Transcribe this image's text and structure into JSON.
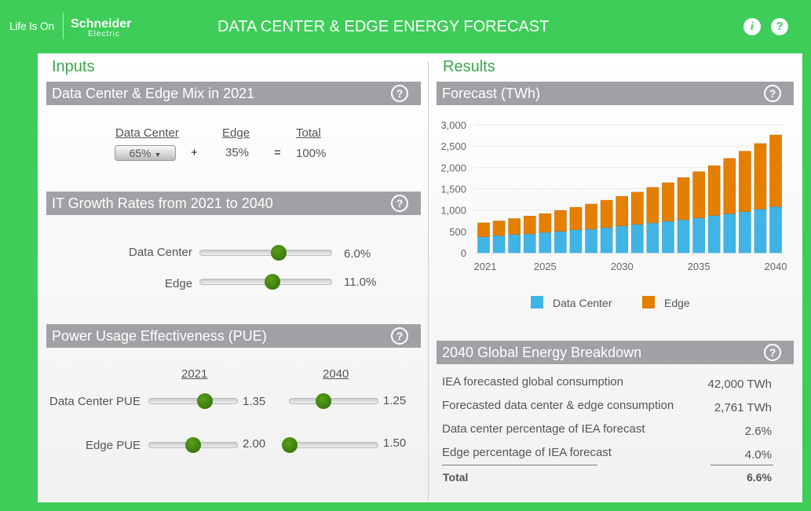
{
  "header": {
    "tagline": "Life Is On",
    "brand": "Schneider",
    "brand_sub": "Electric",
    "title": "DATA CENTER & EDGE ENERGY FORECAST",
    "info_icon": "info-icon",
    "help_icon": "help-icon"
  },
  "inputs": {
    "title": "Inputs",
    "mix": {
      "heading": "Data Center & Edge Mix in 2021",
      "dc_label": "Data Center",
      "edge_label": "Edge",
      "total_label": "Total",
      "dc_value": "65%",
      "plus": "+",
      "edge_value": "35%",
      "equals": "=",
      "total_value": "100%"
    },
    "growth": {
      "heading": "IT Growth Rates from 2021 to 2040",
      "dc_label": "Data Center",
      "dc_value": "6.0%",
      "dc_level": 0.6,
      "edge_label": "Edge",
      "edge_value": "11.0%",
      "edge_level": 0.55
    },
    "pue": {
      "heading": "Power Usage Effectiveness (PUE)",
      "col_2021": "2021",
      "col_2040": "2040",
      "dc_label": "Data Center PUE",
      "dc_2021": "1.35",
      "dc_2021_level": 0.63,
      "dc_2040": "1.25",
      "dc_2040_level": 0.38,
      "edge_label": "Edge PUE",
      "edge_2021": "2.00",
      "edge_2021_level": 0.5,
      "edge_2040": "1.50",
      "edge_2040_level": 0.0
    }
  },
  "results": {
    "title": "Results",
    "forecast_heading": "Forecast (TWh)",
    "breakdown": {
      "heading": "2040 Global Energy Breakdown",
      "rows": [
        {
          "label": "IEA forecasted global consumption",
          "value": "42,000 TWh"
        },
        {
          "label": "Forecasted data center & edge consumption",
          "value": "2,761 TWh"
        },
        {
          "label": "Data center percentage of IEA forecast",
          "value": "2.6%"
        },
        {
          "label": "Edge percentage of IEA forecast",
          "value": "4.0%"
        }
      ],
      "total_label": "Total",
      "total_value": "6.6%"
    }
  },
  "chart_data": {
    "type": "bar",
    "stacked": true,
    "ylim": [
      0,
      3000
    ],
    "yticks": [
      "0",
      "500",
      "1,000",
      "1,500",
      "2,000",
      "2,500",
      "3,000"
    ],
    "xticks": [
      "2021",
      "2025",
      "2030",
      "2035",
      "2040"
    ],
    "categories": [
      2021,
      2022,
      2023,
      2024,
      2025,
      2026,
      2027,
      2028,
      2029,
      2030,
      2031,
      2032,
      2033,
      2034,
      2035,
      2036,
      2037,
      2038,
      2039,
      2040
    ],
    "series": [
      {
        "name": "Data Center",
        "color": "#41b4e6",
        "values": [
          374,
          405,
          430,
          445,
          480,
          505,
          540,
          555,
          590,
          630,
          665,
          700,
          740,
          775,
          815,
          875,
          915,
          965,
          1025,
          1085
        ]
      },
      {
        "name": "Edge",
        "color": "#e47f00",
        "values": [
          326,
          340,
          370,
          415,
          435,
          485,
          525,
          585,
          640,
          690,
          755,
          830,
          900,
          985,
          1085,
          1165,
          1295,
          1415,
          1535,
          1676
        ]
      }
    ],
    "legend": "bottom",
    "grid": true
  }
}
